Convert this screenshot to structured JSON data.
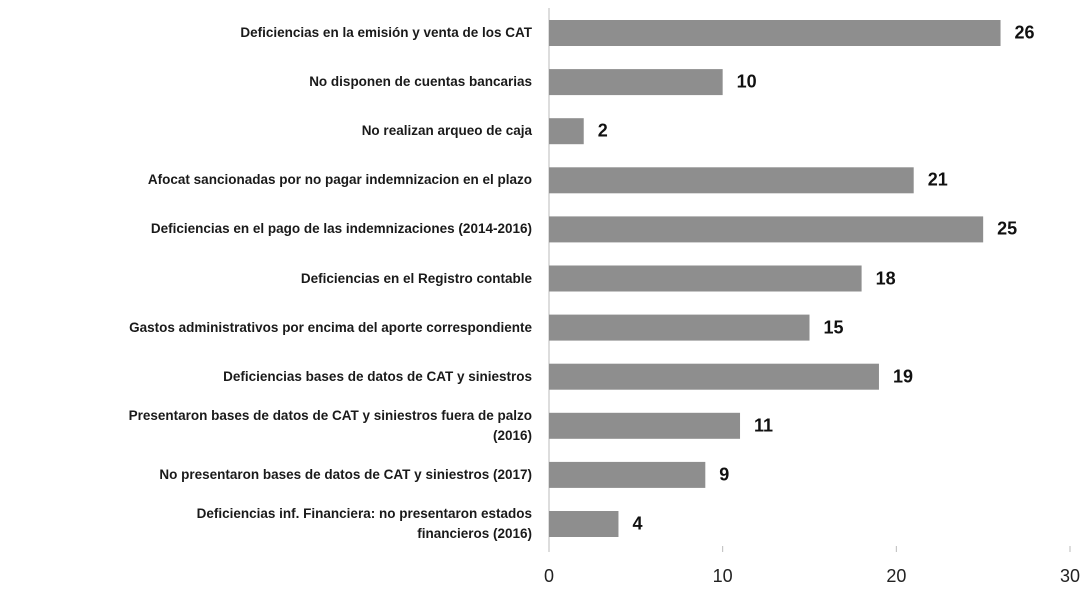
{
  "chart_data": {
    "type": "barh",
    "categories": [
      "Deficiencias en la emisión y venta de los CAT",
      "No disponen de cuentas bancarias",
      "No realizan arqueo de caja",
      "Afocat sancionadas por no pagar indemnizacion en el plazo",
      "Deficiencias en el pago de las indemnizaciones (2014-2016)",
      "Deficiencias en el Registro contable",
      "Gastos administrativos por encima del aporte correspondiente",
      "Deficiencias bases de datos de CAT y siniestros",
      "Presentaron bases de datos de CAT y siniestros fuera de palzo\n(2016)",
      "No presentaron bases de datos de CAT y siniestros (2017)",
      "Deficiencias inf. Financiera: no presentaron estados\nfinancieros (2016)"
    ],
    "values": [
      26,
      10,
      2,
      21,
      25,
      18,
      15,
      19,
      11,
      9,
      4
    ],
    "color": "#8e8e8e",
    "xlim": [
      0,
      30
    ],
    "xticks": [
      0,
      10,
      20,
      30
    ]
  }
}
